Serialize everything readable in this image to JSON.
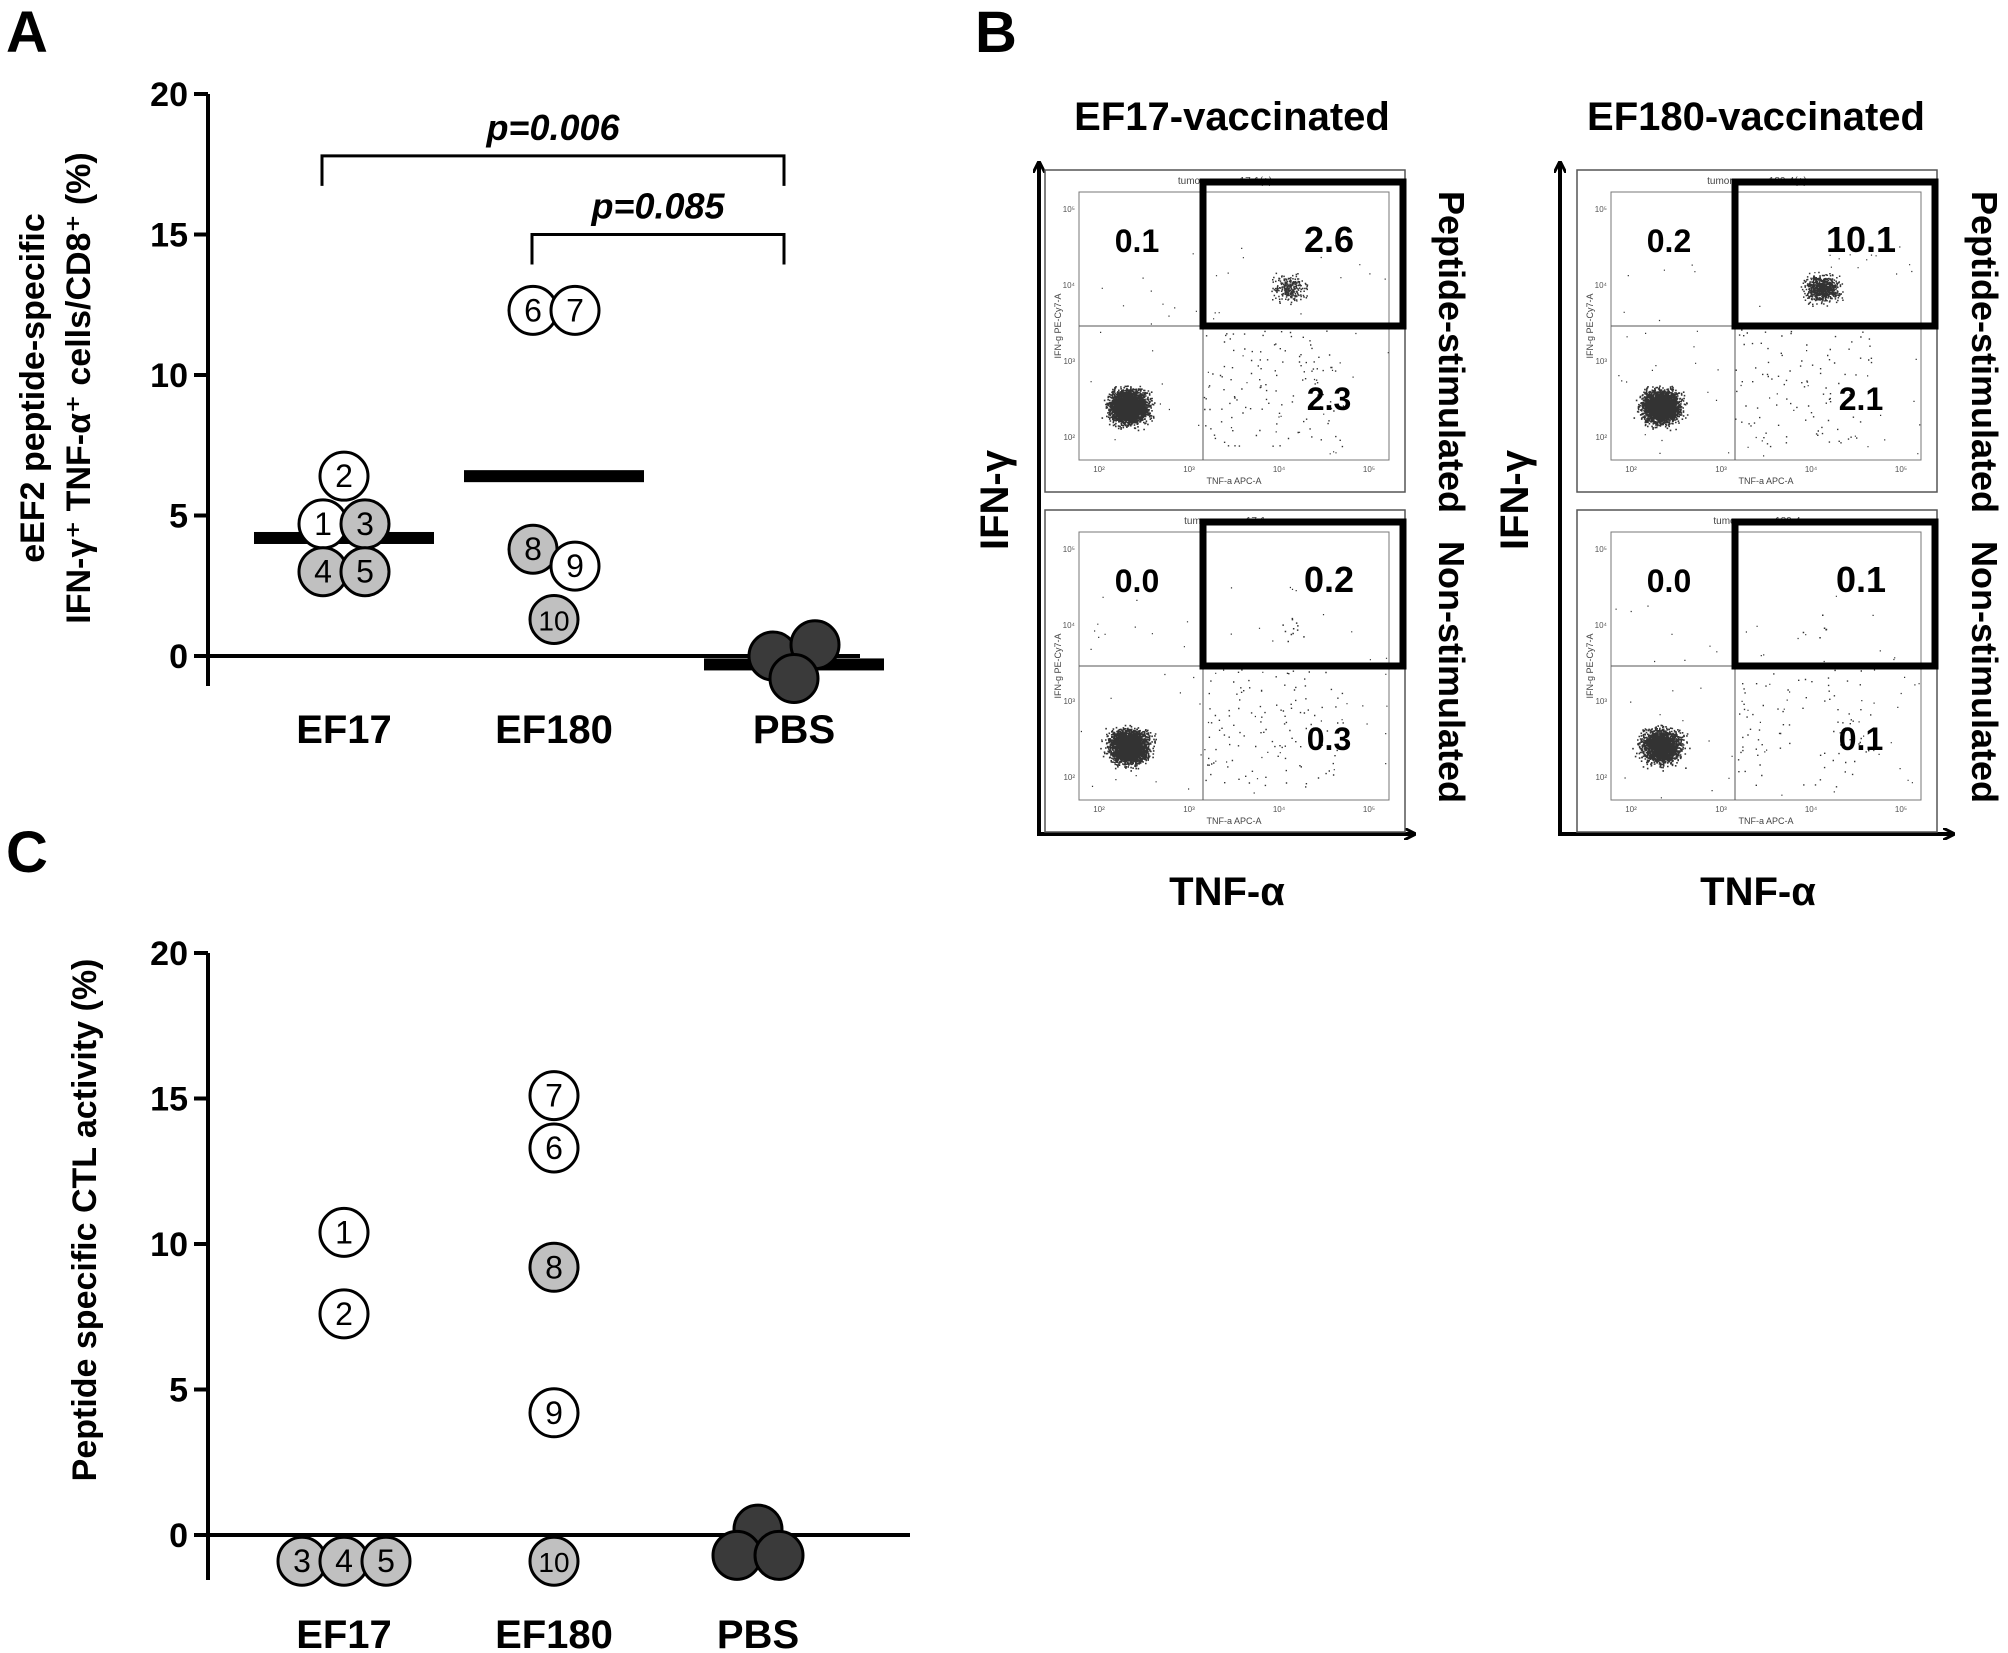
{
  "panel_labels": {
    "a": "A",
    "b": "B",
    "c": "C"
  },
  "colors": {
    "white_marker": "#ffffff",
    "gray_marker": "#c0c0c0",
    "dark_marker": "#3a3a3a",
    "ink": "#000000",
    "dot": "#333333"
  },
  "chart_data": [
    {
      "panel": "A",
      "type": "scatter",
      "ylabel_lines": [
        "eEF2 peptide-specific",
        "IFN-γ⁺ TNF-α⁺ cells/CD8⁺ (%)"
      ],
      "categories": [
        "EF17",
        "EF180",
        "PBS"
      ],
      "yticks": [
        0,
        5,
        10,
        15,
        20
      ],
      "ylim": [
        -1,
        20
      ],
      "points": [
        {
          "group": "EF17",
          "id": "1",
          "y": 4.7,
          "fill": "white"
        },
        {
          "group": "EF17",
          "id": "2",
          "y": 6.4,
          "fill": "white"
        },
        {
          "group": "EF17",
          "id": "3",
          "y": 4.7,
          "fill": "gray"
        },
        {
          "group": "EF17",
          "id": "4",
          "y": 3.0,
          "fill": "gray"
        },
        {
          "group": "EF17",
          "id": "5",
          "y": 3.0,
          "fill": "gray"
        },
        {
          "group": "EF180",
          "id": "6",
          "y": 12.3,
          "fill": "white"
        },
        {
          "group": "EF180",
          "id": "7",
          "y": 12.3,
          "fill": "white"
        },
        {
          "group": "EF180",
          "id": "8",
          "y": 3.8,
          "fill": "gray"
        },
        {
          "group": "EF180",
          "id": "9",
          "y": 3.2,
          "fill": "white"
        },
        {
          "group": "EF180",
          "id": "10",
          "y": 1.3,
          "fill": "gray"
        },
        {
          "group": "PBS",
          "id": "",
          "y": 0.0,
          "fill": "dark"
        },
        {
          "group": "PBS",
          "id": "",
          "y": 0.4,
          "fill": "dark"
        },
        {
          "group": "PBS",
          "id": "",
          "y": -0.8,
          "fill": "dark"
        }
      ],
      "means": [
        {
          "group": "EF17",
          "y": 4.2
        },
        {
          "group": "EF180",
          "y": 6.4
        },
        {
          "group": "PBS",
          "y": -0.3
        }
      ],
      "annotations": [
        {
          "label": "p=0.006",
          "from": "EF17",
          "to": "PBS",
          "level": 17.8
        },
        {
          "label": "p=0.085",
          "from": "EF180",
          "to": "PBS",
          "level": 15.0
        }
      ]
    },
    {
      "panel": "C",
      "type": "scatter",
      "ylabel": "Peptide specific CTL activity (%)",
      "categories": [
        "EF17",
        "EF180",
        "PBS"
      ],
      "yticks": [
        0,
        5,
        10,
        15,
        20
      ],
      "ylim": [
        -2,
        20
      ],
      "points": [
        {
          "group": "EF17",
          "id": "1",
          "y": 10.4,
          "fill": "white"
        },
        {
          "group": "EF17",
          "id": "2",
          "y": 7.6,
          "fill": "white"
        },
        {
          "group": "EF17",
          "id": "3",
          "y": -0.9,
          "fill": "gray"
        },
        {
          "group": "EF17",
          "id": "4",
          "y": -0.9,
          "fill": "gray"
        },
        {
          "group": "EF17",
          "id": "5",
          "y": -0.9,
          "fill": "gray"
        },
        {
          "group": "EF180",
          "id": "7",
          "y": 15.1,
          "fill": "white"
        },
        {
          "group": "EF180",
          "id": "6",
          "y": 13.3,
          "fill": "white"
        },
        {
          "group": "EF180",
          "id": "8",
          "y": 9.2,
          "fill": "gray"
        },
        {
          "group": "EF180",
          "id": "9",
          "y": 4.2,
          "fill": "white"
        },
        {
          "group": "EF180",
          "id": "10",
          "y": -0.9,
          "fill": "gray"
        },
        {
          "group": "PBS",
          "id": "",
          "y": 0.2,
          "fill": "dark"
        },
        {
          "group": "PBS",
          "id": "",
          "y": -0.7,
          "fill": "dark"
        },
        {
          "group": "PBS",
          "id": "",
          "y": -0.7,
          "fill": "dark"
        }
      ]
    }
  ],
  "panel_b": {
    "axis_y": "IFN-γ",
    "axis_x": "TNF-α",
    "side_labels": [
      "Peptide-stimulated",
      "Non-stimulated"
    ],
    "plot_x_label": "TNF-a APC-A",
    "plot_y_label": "IFN-g PE-Cy7-A",
    "axis_ticks": [
      "10²",
      "10³",
      "10⁴",
      "10⁵"
    ],
    "columns": [
      {
        "title": "EF17-vaccinated",
        "plots": [
          {
            "header": "tumor mouse-17-1(+)",
            "ul": "0.1",
            "ur": "2.6",
            "lr": "2.3",
            "dots": 3200,
            "upper_cluster": 260
          },
          {
            "header": "tumor mouse-17-1",
            "ul": "0.0",
            "ur": "0.2",
            "lr": "0.3",
            "dots": 3000,
            "upper_cluster": 12
          }
        ]
      },
      {
        "title": "EF180-vaccinated",
        "plots": [
          {
            "header": "tumor mouse-180-4(+)",
            "ul": "0.2",
            "ur": "10.1",
            "lr": "2.1",
            "dots": 2600,
            "upper_cluster": 700
          },
          {
            "header": "tumor mouse-180-4",
            "ul": "0.0",
            "ur": "0.1",
            "lr": "0.1",
            "dots": 2200,
            "upper_cluster": 6
          }
        ]
      }
    ]
  }
}
